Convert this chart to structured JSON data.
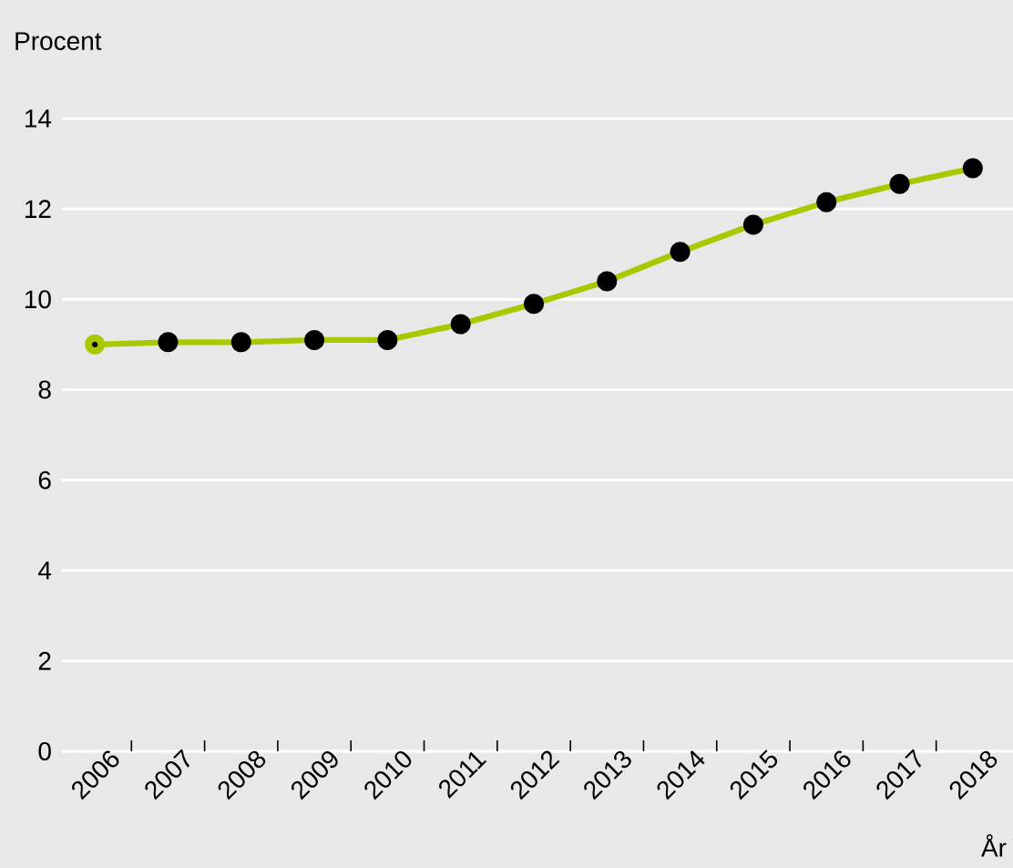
{
  "chart_data": {
    "type": "line",
    "ylabel": "Procent",
    "xlabel": "År",
    "categories": [
      "2006",
      "2007",
      "2008",
      "2009",
      "2010",
      "2011",
      "2012",
      "2013",
      "2014",
      "2015",
      "2016",
      "2017",
      "2018"
    ],
    "series": [
      {
        "color": "#a8c800",
        "values": [
          9.0,
          9.05,
          9.05,
          9.1,
          9.1,
          9.45,
          9.9,
          10.4,
          11.05,
          11.65,
          12.15,
          12.55,
          12.9
        ]
      }
    ],
    "ylim": [
      0,
      14
    ],
    "yticks": [
      0,
      2,
      4,
      6,
      8,
      10,
      12,
      14
    ],
    "grid": "y",
    "marker": "circle",
    "line_style": "solid"
  }
}
